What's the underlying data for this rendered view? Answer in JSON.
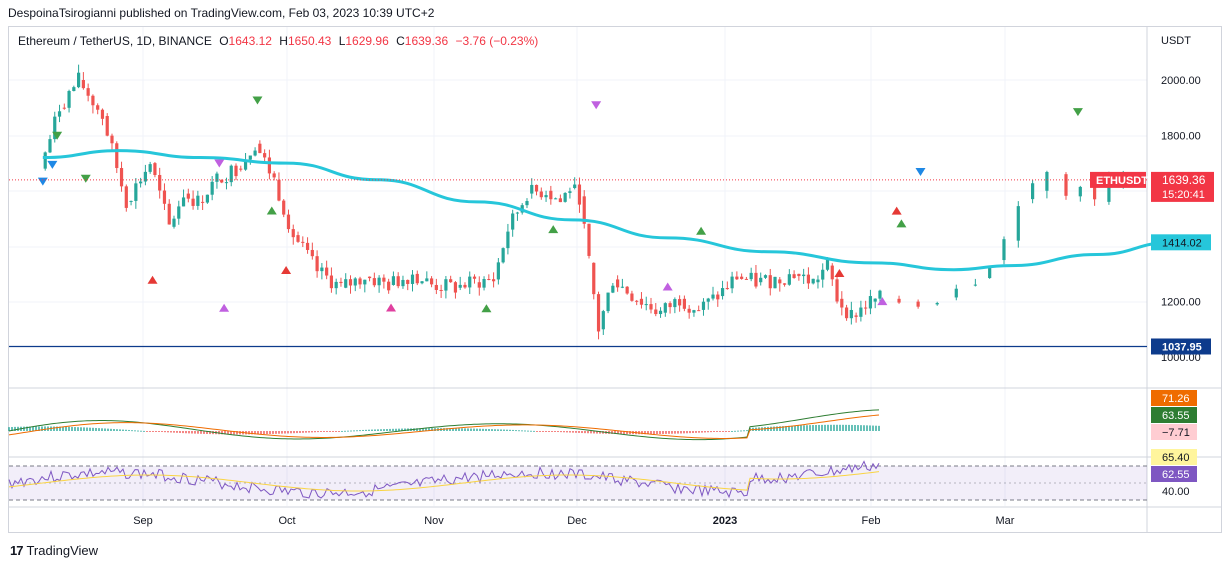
{
  "header": {
    "publisher": "DespoinaTsirogianni published on TradingView.com, Feb 03, 2023 10:39 UTC+2"
  },
  "legend": {
    "symbol": "Ethereum / TetherUS, 1D, BINANCE",
    "o_label": "O",
    "o_value": "1643.12",
    "h_label": "H",
    "h_value": "1650.43",
    "l_label": "L",
    "l_value": "1629.96",
    "c_label": "C",
    "c_value": "1639.36",
    "change": "−3.76 (−0.23%)"
  },
  "footer": {
    "brand": "TradingView",
    "logo": "17"
  },
  "colors": {
    "up": "#26a69a",
    "down": "#ef5350",
    "ma": "#26c6da",
    "support": "#0d3b8c",
    "macd": "#2e7d32",
    "signal": "#ef6c00",
    "rsi": "#7e57c2",
    "rsi_ma": "#f9d442",
    "price_tag": "#f23645",
    "ma_tag": "#e8f7fa"
  },
  "chart_data": [
    {
      "type": "candlestick",
      "symbol": "ETHUSDT",
      "currency": "USDT",
      "interval": "1D",
      "x_ticks": [
        "Sep",
        "Oct",
        "Nov",
        "Dec",
        "2023",
        "Feb",
        "Mar"
      ],
      "y_ticks": [
        "2000.00",
        "1800.00",
        "1200.00",
        "1000.00"
      ],
      "y_range": [
        990,
        2060
      ],
      "last_price": "1639.36",
      "countdown": "15:20:41",
      "ma_value": "1414.02",
      "support_level": "1037.95",
      "segments": [
        {
          "from": "Aug 11",
          "to": "Aug 15",
          "open": 1680,
          "close": 1900
        },
        {
          "from": "Aug 15",
          "to": "Aug 19",
          "open": 1900,
          "close": 2000
        },
        {
          "from": "Aug 19",
          "to": "Aug 24",
          "open": 2000,
          "close": 1870
        },
        {
          "from": "Aug 24",
          "to": "Aug 29",
          "open": 1870,
          "close": 1560
        },
        {
          "from": "Aug 29",
          "to": "Sep 3",
          "open": 1560,
          "close": 1700
        },
        {
          "from": "Sep 3",
          "to": "Sep 7",
          "open": 1700,
          "close": 1470
        },
        {
          "from": "Sep 7",
          "to": "Sep 10",
          "open": 1470,
          "close": 1590
        },
        {
          "from": "Sep 10",
          "to": "Sep 13",
          "open": 1590,
          "close": 1560
        },
        {
          "from": "Sep 13",
          "to": "Sep 17",
          "open": 1560,
          "close": 1640
        },
        {
          "from": "Sep 17",
          "to": "Sep 21",
          "open": 1640,
          "close": 1680
        },
        {
          "from": "Sep 21",
          "to": "Sep 25",
          "open": 1680,
          "close": 1770
        },
        {
          "from": "Sep 25",
          "to": "Sep 29",
          "open": 1770,
          "close": 1640
        },
        {
          "from": "Sep 29",
          "to": "Oct 3",
          "open": 1640,
          "close": 1440
        },
        {
          "from": "Oct 3",
          "to": "Oct 8",
          "open": 1440,
          "close": 1310
        },
        {
          "from": "Oct 8",
          "to": "Oct 13",
          "open": 1310,
          "close": 1250
        },
        {
          "from": "Oct 13",
          "to": "Oct 18",
          "open": 1250,
          "close": 1290
        },
        {
          "from": "Oct 18",
          "to": "Oct 23",
          "open": 1290,
          "close": 1260
        },
        {
          "from": "Oct 23",
          "to": "Oct 28",
          "open": 1260,
          "close": 1300
        },
        {
          "from": "Oct 28",
          "to": "Nov 1",
          "open": 1300,
          "close": 1260
        },
        {
          "from": "Nov 1",
          "to": "Nov 6",
          "open": 1260,
          "close": 1250
        },
        {
          "from": "Nov 6",
          "to": "Nov 10",
          "open": 1250,
          "close": 1270
        },
        {
          "from": "Nov 10",
          "to": "Nov 14",
          "open": 1270,
          "close": 1280
        },
        {
          "from": "Nov 14",
          "to": "Nov 17",
          "open": 1280,
          "close": 1460
        },
        {
          "from": "Nov 17",
          "to": "Nov 21",
          "open": 1460,
          "close": 1590
        },
        {
          "from": "Nov 21",
          "to": "Nov 25",
          "open": 1590,
          "close": 1600
        },
        {
          "from": "Nov 25",
          "to": "Nov 28",
          "open": 1600,
          "close": 1560
        },
        {
          "from": "Nov 28",
          "to": "Nov 30",
          "open": 1560,
          "close": 1610
        },
        {
          "from": "Nov 30",
          "to": "Dec 2",
          "open": 1610,
          "close": 1580
        },
        {
          "from": "Dec 2",
          "to": "Dec 4",
          "open": 1580,
          "close": 1340
        },
        {
          "from": "Dec 4",
          "to": "Dec 6",
          "open": 1340,
          "close": 1100
        },
        {
          "from": "Dec 6",
          "to": "Dec 9",
          "open": 1100,
          "close": 1280
        },
        {
          "from": "Dec 9",
          "to": "Dec 14",
          "open": 1280,
          "close": 1210
        },
        {
          "from": "Dec 14",
          "to": "Dec 19",
          "open": 1210,
          "close": 1160
        },
        {
          "from": "Dec 19",
          "to": "Dec 23",
          "open": 1160,
          "close": 1210
        },
        {
          "from": "Dec 23",
          "to": "Dec 27",
          "open": 1210,
          "close": 1170
        },
        {
          "from": "Dec 27",
          "to": "Dec 31",
          "open": 1170,
          "close": 1220
        },
        {
          "from": "Dec 31",
          "to": "Jan 4",
          "open": 1220,
          "close": 1290
        },
        {
          "from": "Jan 4",
          "to": "Jan 8",
          "open": 1290,
          "close": 1270
        },
        {
          "from": "Jan 8",
          "to": "Jan 12",
          "open": 1270,
          "close": 1280
        },
        {
          "from": "Jan 12",
          "to": "Jan 16",
          "open": 1280,
          "close": 1300
        },
        {
          "from": "Jan 16",
          "to": "Jan 20",
          "open": 1300,
          "close": 1270
        },
        {
          "from": "Jan 20",
          "to": "Jan 23",
          "open": 1270,
          "close": 1330
        },
        {
          "from": "Jan 23",
          "to": "Jan 25",
          "open": 1330,
          "close": 1210
        },
        {
          "from": "Jan 25",
          "to": "Jan 28",
          "open": 1210,
          "close": 1150
        },
        {
          "from": "Jan 28",
          "to": "Feb 1",
          "open": 1150,
          "close": 1200
        },
        {
          "from": "Feb 1",
          "to": "Feb 6",
          "open": 1200,
          "close": 1210
        },
        {
          "from": "Feb 6",
          "to": "Feb 10",
          "open": 1210,
          "close": 1200
        },
        {
          "from": "Feb 10",
          "to": "Feb 14",
          "open": 1200,
          "close": 1190
        },
        {
          "from": "Feb 14",
          "to": "Feb 18",
          "open": 1190,
          "close": 1215
        },
        {
          "from": "Feb 18",
          "to": "Feb 22",
          "open": 1215,
          "close": 1260
        },
        {
          "from": "Feb 22",
          "to": "Feb 25",
          "open": 1260,
          "close": 1285
        },
        {
          "from": "Feb 25",
          "to": "Feb 28",
          "open": 1285,
          "close": 1350
        },
        {
          "from": "Feb 28",
          "to": "Mar 3",
          "open": 1350,
          "close": 1420
        },
        {
          "from": "Mar 3",
          "to": "Mar 6",
          "open": 1420,
          "close": 1570
        },
        {
          "from": "Mar 6",
          "to": "Mar 9",
          "open": 1570,
          "close": 1600
        },
        {
          "from": "Mar 9",
          "to": "Mar 13",
          "open": 1600,
          "close": 1660
        },
        {
          "from": "Mar 13",
          "to": "Mar 16",
          "open": 1660,
          "close": 1580
        },
        {
          "from": "Mar 16",
          "to": "Mar 19",
          "open": 1580,
          "close": 1640
        },
        {
          "from": "Mar 19",
          "to": "Mar 22",
          "open": 1640,
          "close": 1560
        },
        {
          "from": "Mar 22",
          "to": "Mar 25",
          "open": 1560,
          "close": 1630
        },
        {
          "from": "Mar 25",
          "to": "Mar 28",
          "open": 1630,
          "close": 1645
        }
      ],
      "ma_curve": [
        {
          "date": "Aug 11",
          "value": 1720
        },
        {
          "date": "Aug 27",
          "value": 1745
        },
        {
          "date": "Sep 13",
          "value": 1720
        },
        {
          "date": "Oct 1",
          "value": 1700
        },
        {
          "date": "Oct 20",
          "value": 1640
        },
        {
          "date": "Nov 10",
          "value": 1560
        },
        {
          "date": "Nov 30",
          "value": 1495
        },
        {
          "date": "Dec 20",
          "value": 1430
        },
        {
          "date": "Jan 10",
          "value": 1380
        },
        {
          "date": "Feb 1",
          "value": 1340
        },
        {
          "date": "Feb 18",
          "value": 1315
        },
        {
          "date": "Mar 2",
          "value": 1330
        },
        {
          "date": "Mar 20",
          "value": 1370
        },
        {
          "date": "Apr 5",
          "value": 1414
        }
      ],
      "signals": [
        {
          "date": "Aug 11",
          "type": "down",
          "color": "#1e88e5"
        },
        {
          "date": "Aug 13",
          "type": "down",
          "color": "#1e88e5"
        },
        {
          "date": "Aug 14",
          "type": "down",
          "color": "#43a047"
        },
        {
          "date": "Aug 20",
          "type": "down",
          "color": "#43a047"
        },
        {
          "date": "Sep 3",
          "type": "up",
          "color": "#e53935"
        },
        {
          "date": "Sep 17",
          "type": "down",
          "color": "#c060e0"
        },
        {
          "date": "Sep 18",
          "type": "up",
          "color": "#c060e0"
        },
        {
          "date": "Sep 25",
          "type": "down",
          "color": "#43a047"
        },
        {
          "date": "Sep 28",
          "type": "up",
          "color": "#43a047"
        },
        {
          "date": "Oct 1",
          "type": "up",
          "color": "#e53935"
        },
        {
          "date": "Oct 23",
          "type": "up",
          "color": "#e040a0"
        },
        {
          "date": "Nov 12",
          "type": "up",
          "color": "#43a047"
        },
        {
          "date": "Nov 26",
          "type": "up",
          "color": "#43a047"
        },
        {
          "date": "Dec 5",
          "type": "down",
          "color": "#c060e0"
        },
        {
          "date": "Dec 20",
          "type": "up",
          "color": "#c060e0"
        },
        {
          "date": "Dec 27",
          "type": "up",
          "color": "#43a047"
        },
        {
          "date": "Jan 25",
          "type": "up",
          "color": "#e53935"
        },
        {
          "date": "Feb 3",
          "type": "up",
          "color": "#c060e0"
        },
        {
          "date": "Feb 6",
          "type": "up",
          "color": "#e53935"
        },
        {
          "date": "Feb 7",
          "type": "up",
          "color": "#43a047"
        },
        {
          "date": "Feb 11",
          "type": "down",
          "color": "#1e88e5"
        },
        {
          "date": "Mar 16",
          "type": "down",
          "color": "#43a047"
        }
      ]
    },
    {
      "type": "line",
      "name": "MACD",
      "values_shown": [
        "71.26",
        "63.55",
        "−7.71"
      ]
    },
    {
      "type": "line",
      "name": "RSI",
      "values_shown": [
        "65.40",
        "62.55"
      ],
      "y_ticks": [
        "40.00"
      ]
    }
  ]
}
